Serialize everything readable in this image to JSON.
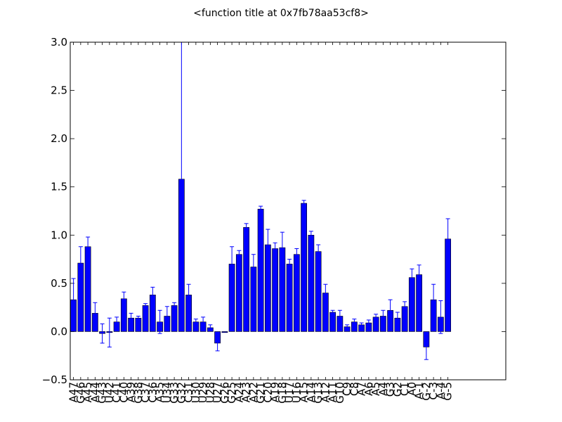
{
  "chart_data": {
    "type": "bar",
    "title": "<function title at 0x7fb78aa53cf8>",
    "xlabel": "",
    "ylabel": "",
    "ylim": [
      -0.5,
      3.0
    ],
    "yticks": [
      "−0.5",
      "0.0",
      "0.5",
      "1.0",
      "1.5",
      "2.0",
      "2.5",
      "3.0"
    ],
    "grid": false,
    "bar_color": "#0000ff",
    "error_color": "#0000ff",
    "categories": [
      "A47",
      "G46",
      "A45",
      "A44",
      "G43",
      "U42",
      "C41",
      "C40",
      "A39",
      "G38",
      "C37",
      "C36",
      "A35",
      "U34",
      "G33",
      "G32",
      "C31",
      "U30",
      "U29",
      "U28",
      "U27",
      "G26",
      "G25",
      "A24",
      "A23",
      "A22",
      "G21",
      "C20",
      "A19",
      "G18",
      "U17",
      "U16",
      "A15",
      "A14",
      "G13",
      "A12",
      "A11",
      "G10",
      "C9",
      "C8",
      "A7",
      "A6",
      "A5",
      "A4",
      "G3",
      "G2",
      "C1",
      "A0",
      "A-1",
      "G-2",
      "C-3",
      "A-4",
      "G-5"
    ],
    "categories_display": [
      "A47",
      "G46",
      "A45",
      "A44",
      "G43",
      "U42",
      "C41",
      "C40",
      "A39",
      "G38",
      "C37",
      "C36",
      "A35",
      "U34",
      "G33",
      "G32",
      "C31",
      "U30",
      "U29",
      "U28",
      "U27",
      "G26",
      "G25",
      "A24",
      "A23",
      "A22",
      "G21",
      "C20",
      "A19",
      "G18",
      "U17",
      "U16",
      "A15",
      "A14",
      "G13",
      "A12",
      "A11",
      "G10",
      "C9",
      "C8",
      "A7",
      "A6",
      "A5",
      "A4",
      "G3",
      "G2",
      "C1",
      "A0",
      "A-1",
      "G-2",
      "C-3",
      "A-4",
      "G-5"
    ],
    "values": [
      0.33,
      0.71,
      0.88,
      0.19,
      -0.02,
      -0.01,
      0.1,
      0.34,
      0.14,
      0.14,
      0.27,
      0.38,
      0.1,
      0.16,
      0.27,
      1.58,
      0.38,
      0.1,
      0.1,
      0.04,
      -0.12,
      -0.01,
      0.7,
      0.8,
      1.08,
      0.67,
      1.27,
      0.9,
      0.86,
      0.87,
      0.7,
      0.8,
      1.33,
      1.0,
      0.83,
      0.4,
      0.2,
      0.16,
      0.05,
      0.1,
      0.07,
      0.09,
      0.15,
      0.16,
      0.22,
      0.14,
      0.26,
      0.56,
      0.59,
      -0.16,
      0.33,
      0.15,
      0.96
    ],
    "errors": [
      0.22,
      0.17,
      0.1,
      0.11,
      0.1,
      0.15,
      0.05,
      0.07,
      0.05,
      0.02,
      0.02,
      0.08,
      0.12,
      0.1,
      0.03,
      1.42,
      0.11,
      0.03,
      0.05,
      0.03,
      0.08,
      0.0,
      0.18,
      0.04,
      0.04,
      0.13,
      0.03,
      0.16,
      0.06,
      0.16,
      0.05,
      0.06,
      0.03,
      0.04,
      0.07,
      0.09,
      0.02,
      0.06,
      0.02,
      0.03,
      0.02,
      0.03,
      0.03,
      0.06,
      0.11,
      0.06,
      0.05,
      0.09,
      0.1,
      0.13,
      0.16,
      0.17,
      0.21
    ]
  }
}
